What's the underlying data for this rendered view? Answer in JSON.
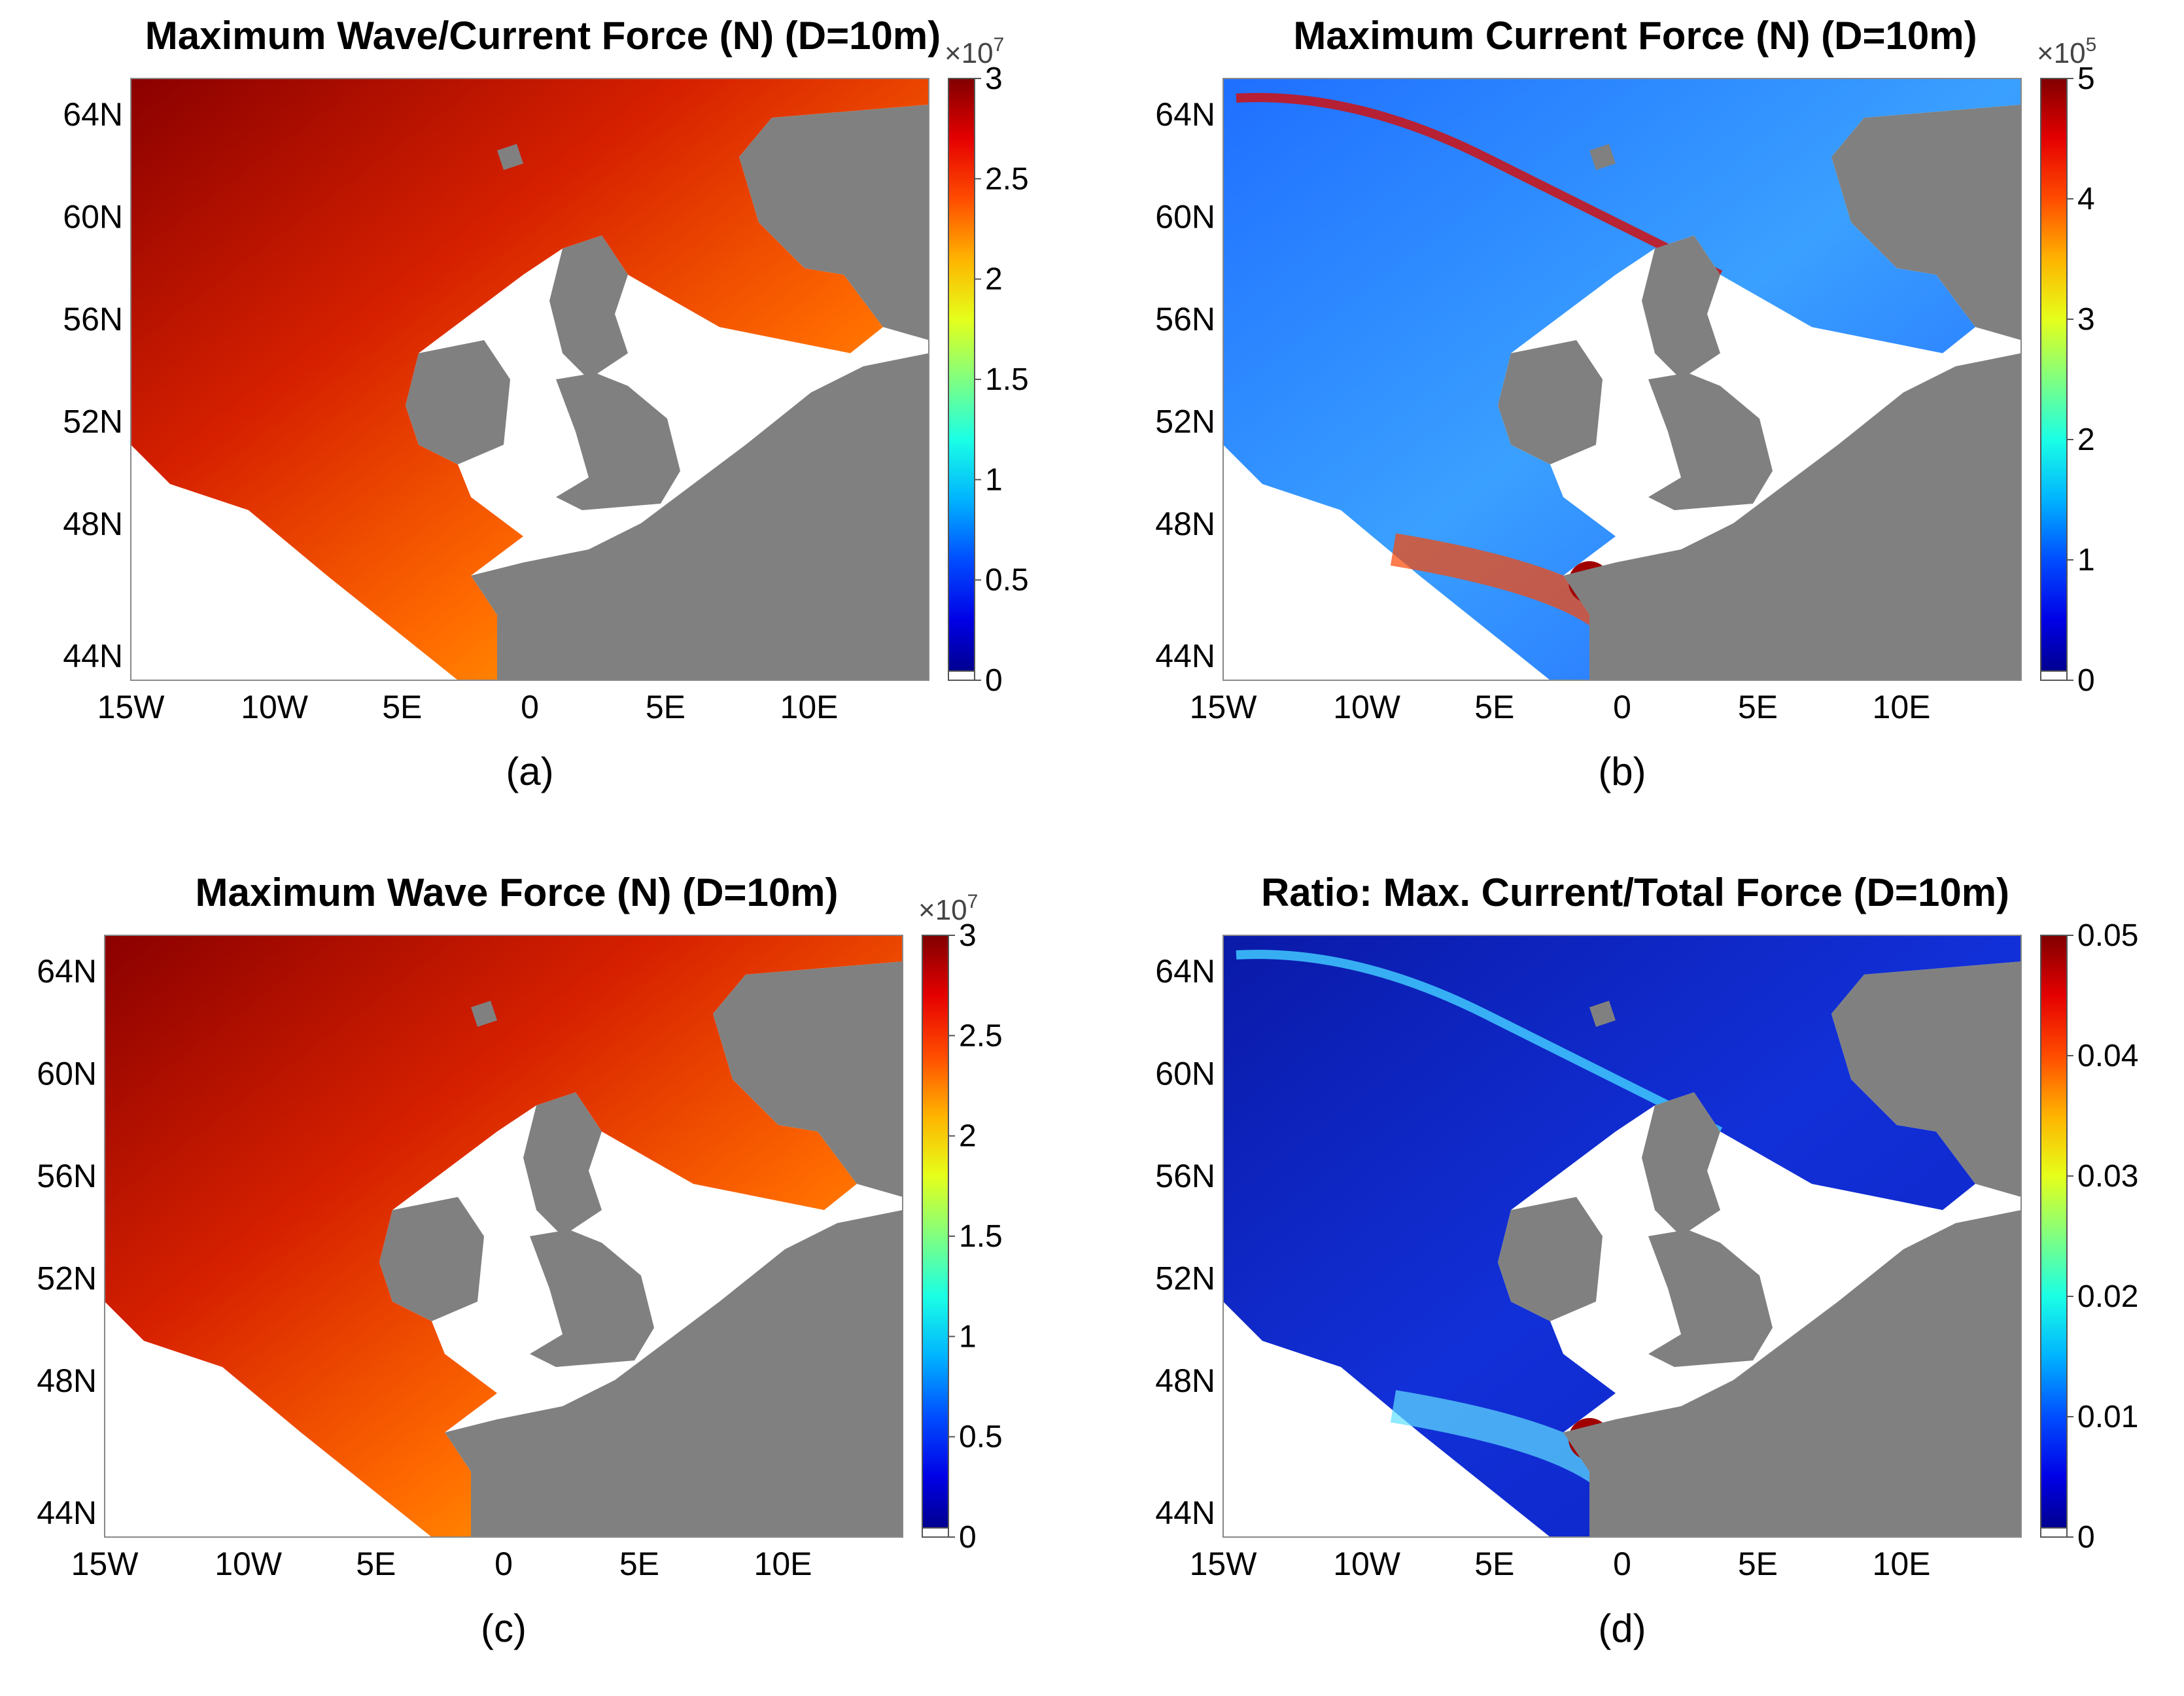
{
  "colors": {
    "land": "#808080",
    "colormap": "jet",
    "sea": "#ffffff"
  },
  "axes": {
    "lat_ticks": [
      "64N",
      "60N",
      "56N",
      "52N",
      "48N",
      "44N"
    ],
    "lon_ticks": [
      "15W",
      "10W",
      "5E",
      "0",
      "5E",
      "10E"
    ]
  },
  "panels": [
    {
      "id": "a",
      "title": "Maximum Wave/Current Force (N) (D=10m)",
      "label": "(a)",
      "colorbar": {
        "ticks": [
          "3",
          "2.5",
          "2",
          "1.5",
          "1",
          "0.5",
          "0"
        ],
        "exponent": "7",
        "range": [
          0,
          30000000.0
        ],
        "unit": "N"
      },
      "field_hint": "high-force open Atlantic (dark red) decreasing toward coasts"
    },
    {
      "id": "b",
      "title": "Maximum Current Force (N)  (D=10m)",
      "label": "(b)",
      "colorbar": {
        "ticks": [
          "5",
          "4",
          "3",
          "2",
          "1",
          "0"
        ],
        "exponent": "5",
        "range": [
          0,
          500000.0
        ],
        "unit": "N"
      },
      "field_hint": "mostly blue with red current jets along shelf edges"
    },
    {
      "id": "c",
      "title": "Maximum Wave Force (N) (D=10m)",
      "label": "(c)",
      "colorbar": {
        "ticks": [
          "3",
          "2.5",
          "2",
          "1.5",
          "1",
          "0.5",
          "0"
        ],
        "exponent": "7",
        "range": [
          0,
          30000000.0
        ],
        "unit": "N"
      },
      "field_hint": "similar to panel (a)"
    },
    {
      "id": "d",
      "title": "Ratio: Max. Current/Total Force (D=10m)",
      "label": "(d)",
      "colorbar": {
        "ticks": [
          "0.05",
          "0.04",
          "0.03",
          "0.02",
          "0.01",
          "0"
        ],
        "exponent": "",
        "range": [
          0,
          0.05
        ],
        "unit": ""
      },
      "field_hint": "mostly dark blue with hotspots near channels"
    }
  ]
}
